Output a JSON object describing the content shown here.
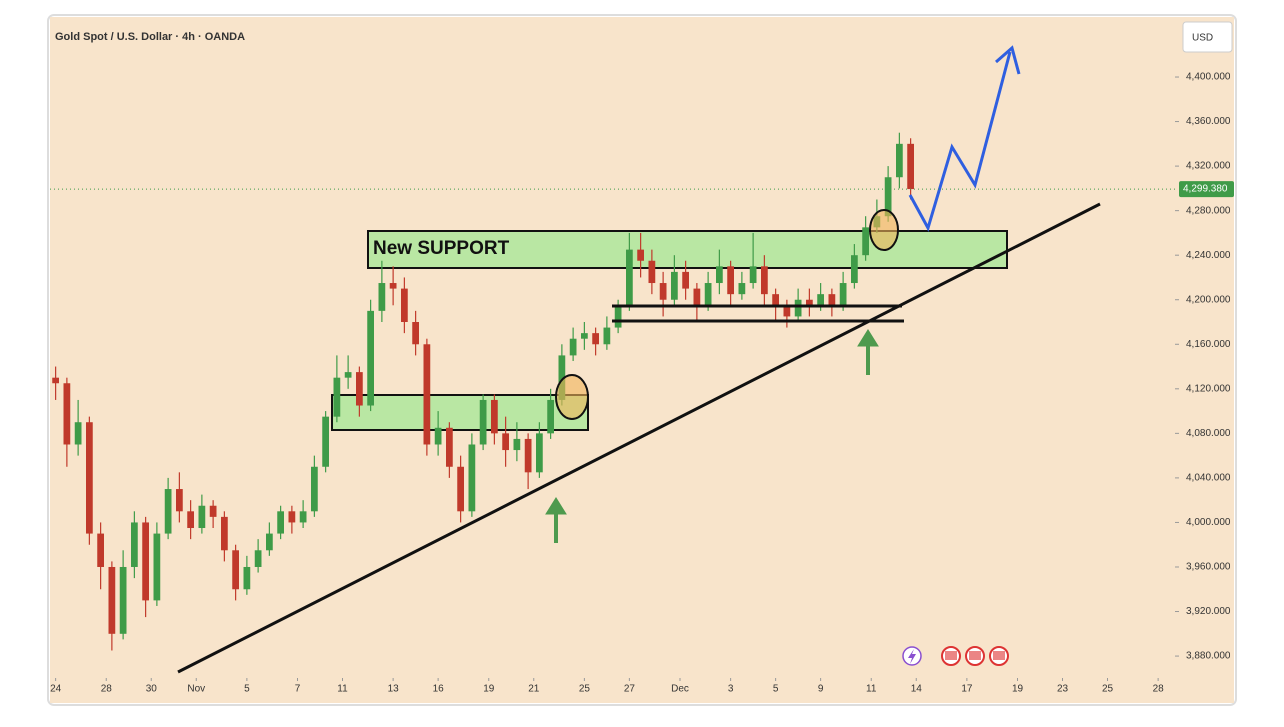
{
  "chart_data": {
    "type": "candlestick",
    "title": "Gold Spot / U.S. Dollar · 4h · OANDA",
    "currency": "USD",
    "annotation": "New SUPPORT",
    "up_color": "#3f9b48",
    "down_color": "#c0392b",
    "grid": false,
    "last_price": {
      "value": 4299.38,
      "label": "4,299.380"
    },
    "ylim": [
      3863,
      4453
    ],
    "yticks": [
      {
        "value": 3880,
        "label": "3,880.000"
      },
      {
        "value": 3920,
        "label": "3,920.000"
      },
      {
        "value": 3960,
        "label": "3,960.000"
      },
      {
        "value": 4000,
        "label": "4,000.000"
      },
      {
        "value": 4040,
        "label": "4,040.000"
      },
      {
        "value": 4080,
        "label": "4,080.000"
      },
      {
        "value": 4120,
        "label": "4,120.000"
      },
      {
        "value": 4160,
        "label": "4,160.000"
      },
      {
        "value": 4200,
        "label": "4,200.000"
      },
      {
        "value": 4240,
        "label": "4,240.000"
      },
      {
        "value": 4280,
        "label": "4,280.000"
      },
      {
        "value": 4320,
        "label": "4,320.000"
      },
      {
        "value": 4360,
        "label": "4,360.000"
      },
      {
        "value": 4400,
        "label": "4,400.000"
      }
    ],
    "xlim": [
      -0.5,
      99.5
    ],
    "xticks": [
      {
        "value": 0,
        "label": "24"
      },
      {
        "value": 4.5,
        "label": "28"
      },
      {
        "value": 8.5,
        "label": "30"
      },
      {
        "value": 12.5,
        "label": "Nov"
      },
      {
        "value": 17,
        "label": "5"
      },
      {
        "value": 21.5,
        "label": "7"
      },
      {
        "value": 25.5,
        "label": "11"
      },
      {
        "value": 30,
        "label": "13"
      },
      {
        "value": 34,
        "label": "16"
      },
      {
        "value": 38.5,
        "label": "19"
      },
      {
        "value": 42.5,
        "label": "21"
      },
      {
        "value": 47,
        "label": "25"
      },
      {
        "value": 51,
        "label": "27"
      },
      {
        "value": 55.5,
        "label": "Dec"
      },
      {
        "value": 60,
        "label": "3"
      },
      {
        "value": 64,
        "label": "5"
      },
      {
        "value": 68,
        "label": "9"
      },
      {
        "value": 72.5,
        "label": "11"
      },
      {
        "value": 76.5,
        "label": "14"
      },
      {
        "value": 81,
        "label": "17"
      },
      {
        "value": 85.5,
        "label": "19"
      },
      {
        "value": 89.5,
        "label": "23"
      },
      {
        "value": 93.5,
        "label": "25"
      },
      {
        "value": 98,
        "label": "28"
      }
    ],
    "x": [
      0,
      1,
      2,
      3,
      4,
      5,
      6,
      7,
      8,
      9,
      10,
      11,
      12,
      13,
      14,
      15,
      16,
      17,
      18,
      19,
      20,
      21,
      22,
      23,
      24,
      25,
      26,
      27,
      28,
      29,
      30,
      31,
      32,
      33,
      34,
      35,
      36,
      37,
      38,
      39,
      40,
      41,
      42,
      43,
      44,
      45,
      46,
      47,
      48,
      49,
      50,
      51,
      52,
      53,
      54,
      55,
      56,
      57,
      58,
      59,
      60,
      61,
      62,
      63,
      64,
      65,
      66,
      67,
      68,
      69,
      70,
      71,
      72,
      73,
      74,
      75,
      76
    ],
    "open": [
      4130,
      4125,
      4070,
      4090,
      3990,
      3960,
      3900,
      3960,
      4000,
      3930,
      3990,
      4030,
      4010,
      3995,
      4015,
      4005,
      3975,
      3940,
      3960,
      3975,
      3990,
      4010,
      4000,
      4010,
      4050,
      4095,
      4130,
      4135,
      4105,
      4190,
      4215,
      4210,
      4180,
      4160,
      4070,
      4085,
      4050,
      4010,
      4070,
      4110,
      4080,
      4065,
      4075,
      4045,
      4080,
      4110,
      4150,
      4165,
      4170,
      4160,
      4175,
      4195,
      4245,
      4235,
      4215,
      4200,
      4225,
      4210,
      4195,
      4215,
      4230,
      4205,
      4215,
      4230,
      4205,
      4195,
      4185,
      4200,
      4195,
      4205,
      4195,
      4215,
      4240,
      4265,
      4275,
      4310,
      4340
    ],
    "high": [
      4140,
      4130,
      4110,
      4095,
      4000,
      3965,
      3975,
      4010,
      4005,
      4000,
      4040,
      4045,
      4020,
      4025,
      4020,
      4010,
      3980,
      3970,
      3985,
      4000,
      4015,
      4015,
      4020,
      4060,
      4100,
      4150,
      4150,
      4140,
      4200,
      4235,
      4230,
      4220,
      4190,
      4165,
      4100,
      4090,
      4060,
      4080,
      4115,
      4115,
      4095,
      4090,
      4080,
      4090,
      4120,
      4160,
      4175,
      4180,
      4175,
      4185,
      4200,
      4260,
      4260,
      4245,
      4225,
      4240,
      4235,
      4215,
      4225,
      4245,
      4235,
      4225,
      4260,
      4240,
      4210,
      4200,
      4210,
      4210,
      4215,
      4210,
      4225,
      4250,
      4275,
      4290,
      4320,
      4350,
      4345
    ],
    "low": [
      4110,
      4050,
      4060,
      3980,
      3940,
      3885,
      3895,
      3950,
      3915,
      3925,
      3985,
      4000,
      3985,
      3990,
      3995,
      3965,
      3930,
      3935,
      3955,
      3970,
      3985,
      3990,
      3995,
      4005,
      4045,
      4090,
      4120,
      4095,
      4100,
      4180,
      4195,
      4170,
      4150,
      4060,
      4060,
      4040,
      4000,
      4005,
      4065,
      4070,
      4050,
      4055,
      4030,
      4040,
      4075,
      4105,
      4145,
      4155,
      4150,
      4155,
      4170,
      4190,
      4220,
      4205,
      4185,
      4195,
      4200,
      4180,
      4190,
      4205,
      4195,
      4200,
      4210,
      4195,
      4180,
      4175,
      4180,
      4185,
      4190,
      4185,
      4190,
      4210,
      4235,
      4260,
      4270,
      4300,
      4290
    ],
    "close": [
      4125,
      4070,
      4090,
      3990,
      3960,
      3900,
      3960,
      4000,
      3930,
      3990,
      4030,
      4010,
      3995,
      4015,
      4005,
      3975,
      3940,
      3960,
      3975,
      3990,
      4010,
      4000,
      4010,
      4050,
      4095,
      4130,
      4135,
      4105,
      4190,
      4215,
      4210,
      4180,
      4160,
      4070,
      4085,
      4050,
      4010,
      4070,
      4110,
      4080,
      4065,
      4075,
      4045,
      4080,
      4110,
      4150,
      4165,
      4170,
      4160,
      4175,
      4195,
      4245,
      4235,
      4215,
      4200,
      4225,
      4210,
      4195,
      4215,
      4230,
      4205,
      4215,
      4230,
      4205,
      4195,
      4185,
      4200,
      4195,
      4205,
      4195,
      4215,
      4240,
      4265,
      4275,
      4310,
      4340,
      4299.38
    ]
  }
}
